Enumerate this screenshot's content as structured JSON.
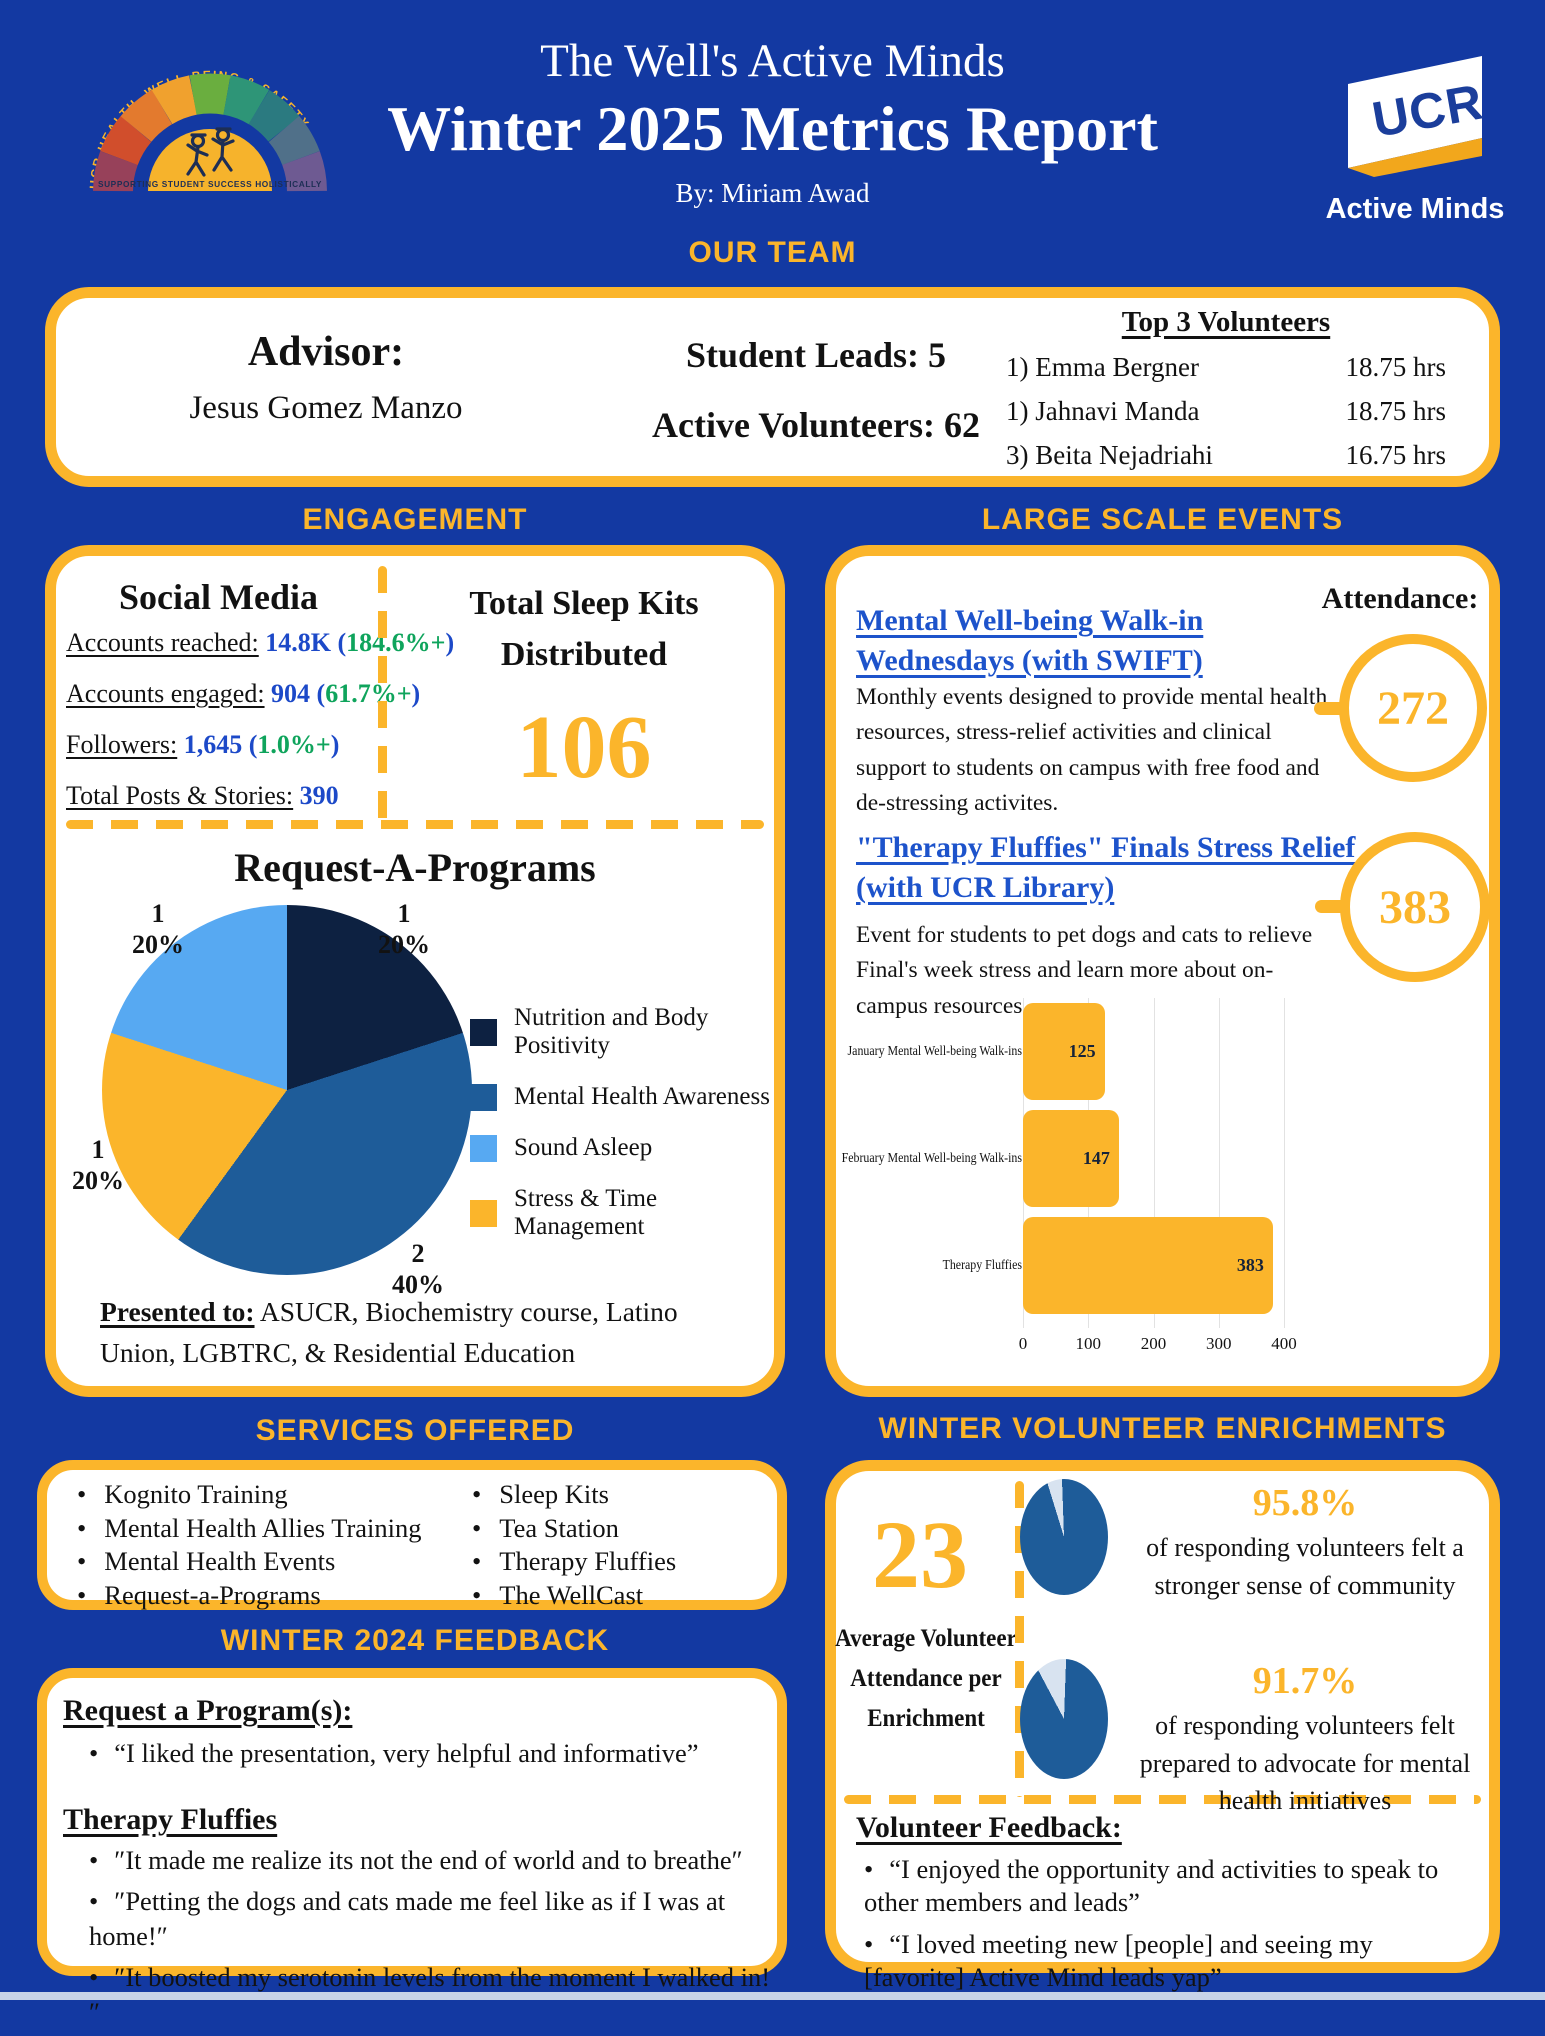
{
  "colors": {
    "background": "#1339A2",
    "accent_yellow": "#FBB52B",
    "stat_blue": "#1C49C8",
    "stat_green": "#0FA45C",
    "link_blue": "#1D53CB"
  },
  "header": {
    "title_line1": "The Well's Active Minds",
    "title_line2": "Winter 2025 Metrics Report",
    "byline": "By: Miriam Awad",
    "left_logo_arc_text": "UCR HEALTH, WELL-BEING & SAFETY",
    "left_logo_caption": "SUPPORTING STUDENT SUCCESS HOLISTICALLY",
    "right_logo_text": "UCR",
    "right_logo_caption": "Active Minds"
  },
  "section_titles": {
    "our_team": "OUR TEAM",
    "engagement": "ENGAGEMENT",
    "large_scale_events": "LARGE SCALE EVENTS",
    "services_offered": "SERVICES OFFERED",
    "winter_feedback": "WINTER 2024 FEEDBACK",
    "volunteer_enrichments": "WINTER VOLUNTEER ENRICHMENTS"
  },
  "team": {
    "advisor_label": "Advisor:",
    "advisor_name": "Jesus Gomez Manzo",
    "student_leads": "Student Leads: 5",
    "active_volunteers": "Active Volunteers: 62",
    "top_volunteers_title": "Top 3 Volunteers",
    "top_volunteers": [
      {
        "rank": "1)",
        "name": "Emma Bergner",
        "hours": "18.75 hrs"
      },
      {
        "rank": "1)",
        "name": "Jahnavi Manda",
        "hours": "18.75 hrs"
      },
      {
        "rank": "3)",
        "name": "Beita Nejadriahi",
        "hours": "16.75 hrs"
      }
    ]
  },
  "engagement": {
    "social_media_title": "Social Media",
    "stats": [
      {
        "label": "Accounts reached:",
        "value": "14.8K",
        "change": "184.6%+"
      },
      {
        "label": "Accounts engaged:",
        "value": "904",
        "change": "61.7%+"
      },
      {
        "label": "Followers:",
        "value": "1,645",
        "change": "1.0%+"
      },
      {
        "label": "Total Posts & Stories:",
        "value": "390",
        "change": ""
      }
    ],
    "sleep_kits_title_line1": "Total Sleep Kits",
    "sleep_kits_title_line2": "Distributed",
    "sleep_kits_value": "106",
    "presented_to_label": "Presented to:",
    "presented_to_text": " ASUCR, Biochemistry course, Latino Union, LGBTRC, & Residential Education"
  },
  "events": {
    "attendance_label": "Attendance:",
    "event1_title": "Mental Well-being Walk-in Wednesdays (with SWIFT)",
    "event1_description": "Monthly events designed to provide mental health resources, stress-relief activities and clinical support to students on campus with free food and de-stressing activites.",
    "event1_attendance": "272",
    "event2_title": "\"Therapy Fluffies\" Finals Stress Relief (with UCR Library)",
    "event2_description": "Event for students to pet dogs and cats to relieve Final's week stress and learn more about on-campus resources.",
    "event2_attendance": "383"
  },
  "services": {
    "column1": [
      "Kognito Training",
      "Mental Health Allies Training",
      "Mental Health Events",
      "Request-a-Programs"
    ],
    "column2": [
      "Sleep Kits",
      "Tea Station",
      "Therapy Fluffies",
      "The WellCast"
    ]
  },
  "winter_feedback": {
    "group1_title": "Request a Program(s):",
    "group1_quotes": [
      "“I liked the presentation, very helpful and informative”"
    ],
    "group2_title": "Therapy Fluffies",
    "group2_quotes": [
      "″It made me realize its not the end of world and to breathe″",
      "″Petting the dogs and cats made me feel like as if I was at home!″",
      "″It boosted my serotonin levels from the moment I walked in!″"
    ]
  },
  "enrichments": {
    "average_value": "23",
    "average_caption": "Average Volunteer Attendance per Enrichment",
    "stat1_percent": "95.8%",
    "stat1_caption": "of responding volunteers felt a stronger sense of community",
    "stat2_percent": "91.7%",
    "stat2_caption": "of responding volunteers felt prepared to advocate for mental health initiatives",
    "feedback_title": "Volunteer Feedback:",
    "feedback_quotes": [
      "“I enjoyed the opportunity and activities to speak to other members and leads”",
      "“I loved meeting new [people] and seeing my [favorite] Active Mind leads yap”"
    ]
  },
  "chart_data": [
    {
      "id": "request_a_programs_pie",
      "type": "pie",
      "title": "Request-A-Programs",
      "labels": [
        "Nutrition and Body Positivity",
        "Mental Health Awareness",
        "Sound Asleep",
        "Stress & Time Management"
      ],
      "values": [
        1,
        2,
        1,
        1
      ],
      "percents": [
        "20%",
        "40%",
        "20%",
        "20%"
      ],
      "colors": [
        "#0D2141",
        "#1E5C99",
        "#FBB52B",
        "#57A9F2"
      ],
      "legend_order": [
        0,
        1,
        3,
        2
      ],
      "legend_position": "right"
    },
    {
      "id": "attendance_bar",
      "type": "bar",
      "orientation": "horizontal",
      "categories": [
        "January Mental Well-being Walk-ins",
        "February Mental Well-being Walk-ins",
        "Therapy Fluffies"
      ],
      "values": [
        125,
        147,
        383
      ],
      "xlim": [
        0,
        400
      ],
      "xticks": [
        0,
        100,
        200,
        300,
        400
      ],
      "bar_color": "#FBB52B",
      "grid": true
    },
    {
      "id": "community_pie",
      "type": "pie",
      "values": [
        95.8,
        4.2
      ],
      "colors": [
        "#1E5C99",
        "#D8E3F0"
      ],
      "label": "95.8%"
    },
    {
      "id": "advocacy_pie",
      "type": "pie",
      "values": [
        91.7,
        8.3
      ],
      "colors": [
        "#1E5C99",
        "#D8E3F0"
      ],
      "label": "91.7%"
    }
  ]
}
